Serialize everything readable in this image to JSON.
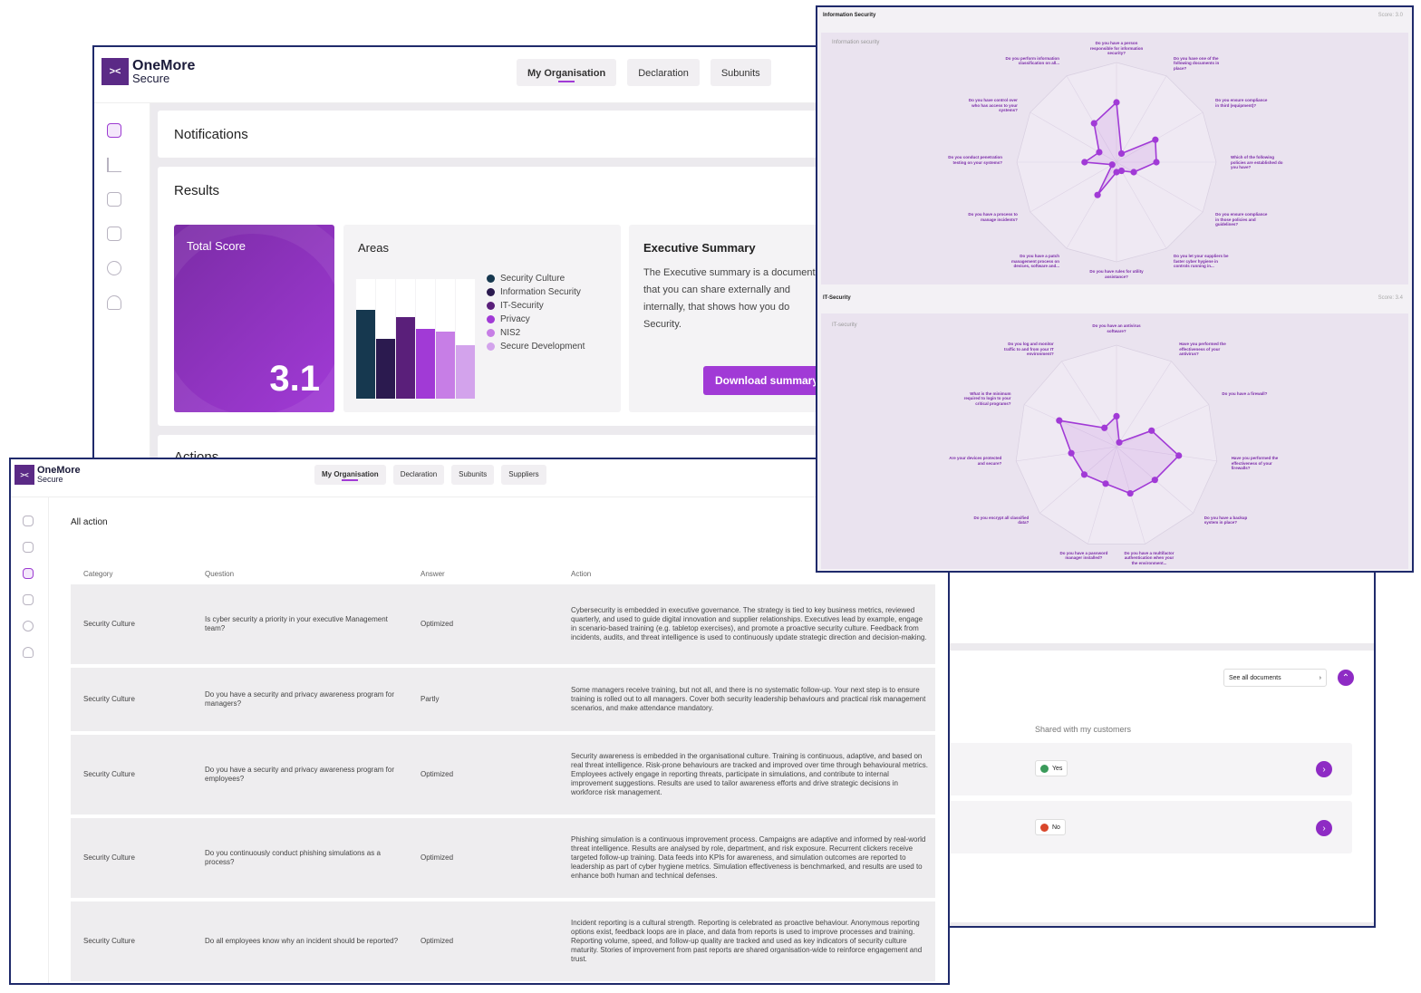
{
  "app": {
    "logo_line1": "OneMore",
    "logo_line2": "Secure",
    "logo_mark": "><"
  },
  "tabs_main": [
    "My Organisation",
    "Declaration",
    "Subunits"
  ],
  "tabs_actions": [
    "My Organisation",
    "Declaration",
    "Subunits",
    "Suppliers"
  ],
  "dashboard": {
    "notifications_title": "Notifications",
    "results_title": "Results",
    "total_score_label": "Total Score",
    "total_score_value": "3.1",
    "areas_title": "Areas",
    "areas_legend": [
      {
        "name": "Security Culture",
        "color": "#16384f"
      },
      {
        "name": "Information Security",
        "color": "#2b1a4f"
      },
      {
        "name": "IT-Security",
        "color": "#5a1f7a"
      },
      {
        "name": "Privacy",
        "color": "#a13ad6"
      },
      {
        "name": "NIS2",
        "color": "#c77ee6"
      },
      {
        "name": "Secure Development",
        "color": "#d3a3ec"
      }
    ],
    "areas_bar_fractions": [
      0.74,
      0.5,
      0.68,
      0.58,
      0.56,
      0.45
    ],
    "exec_title": "Executive Summary",
    "exec_text": "The Executive summary is a document that you can share externally and internally, that shows how you do Security.",
    "download_label": "Download summary",
    "actions_title": "Actions"
  },
  "documents": {
    "see_all_label": "See all documents",
    "shared_header": "Shared with my customers",
    "rows": [
      {
        "status": "Yes",
        "status_color": "#3a9a5a"
      },
      {
        "status": "No",
        "status_color": "#d9472b"
      }
    ]
  },
  "actions_view": {
    "title": "All action",
    "columns": [
      "Category",
      "Question",
      "Answer",
      "Action"
    ],
    "rows": [
      {
        "category": "Security Culture",
        "question": "Is cyber security a priority in your executive Management team?",
        "answer": "Optimized",
        "action": "Cybersecurity is embedded in executive governance. The strategy is tied to key business metrics, reviewed quarterly, and used to guide digital innovation and supplier relationships. Executives lead by example, engage in scenario-based training (e.g. tabletop exercises), and promote a proactive security culture. Feedback from incidents, audits, and threat intelligence is used to continuously update strategic direction and decision-making."
      },
      {
        "category": "Security Culture",
        "question": "Do you have a security and privacy awareness program for managers?",
        "answer": "Partly",
        "action": "Some managers receive training, but not all, and there is no systematic follow-up. Your next step is to ensure training is rolled out to all managers. Cover both security leadership behaviours and practical risk management scenarios, and make attendance mandatory."
      },
      {
        "category": "Security Culture",
        "question": "Do you have a security and privacy awareness program for employees?",
        "answer": "Optimized",
        "action": "Security awareness is embedded in the organisational culture. Training is continuous, adaptive, and based on real threat intelligence. Risk-prone behaviours are tracked and improved over time through behavioural metrics. Employees actively engage in reporting threats, participate in simulations, and contribute to internal improvement suggestions. Results are used to tailor awareness efforts and drive strategic decisions in workforce risk management."
      },
      {
        "category": "Security Culture",
        "question": "Do you continuously conduct phishing simulations as a process?",
        "answer": "Optimized",
        "action": "Phishing simulation is a continuous improvement process. Campaigns are adaptive and informed by real-world threat intelligence. Results are analysed by role, department, and risk exposure. Recurrent clickers receive targeted follow-up training. Data feeds into KPIs for awareness, and simulation outcomes are reported to leadership as part of cyber hygiene metrics. Simulation effectiveness is benchmarked, and results are used to enhance both human and technical defenses."
      },
      {
        "category": "Security Culture",
        "question": "Do all employees know why an incident should be reported?",
        "answer": "Optimized",
        "action": "Incident reporting is a cultural strength. Reporting is celebrated as proactive behaviour. Anonymous reporting options exist, feedback loops are in place, and data from reports is used to improve processes and training. Reporting volume, speed, and follow-up quality are tracked and used as key indicators of security culture maturity. Stories of improvement from past reports are shared organisation-wide to reinforce engagement and trust."
      }
    ]
  },
  "radar": {
    "info_panel_title": "Information Security",
    "info_panel_score": "Score: 3.0",
    "info_sub": "Information security",
    "info_labels": [
      "Do you have a person responsible for information security?",
      "Do you have one of the following documents in place?",
      "Do you ensure compliance in third (equipment)?",
      "Which of the following policies are established do you have?",
      "Do you ensure compliance in those policies and guidelines?",
      "Do you let your suppliers be faster cyber hygiene in controls running in...",
      "Do you have rules for utility assistance?",
      "Do you have a patch management process on devices, software and...",
      "Do you have a process to manage incidents?",
      "Do you conduct penetration testing on your systems?",
      "Do you have control over who has access to your systems?",
      "Do you perform information classification on all..."
    ],
    "info_values": [
      0.6,
      0.1,
      0.45,
      0.4,
      0.2,
      0.1,
      0.1,
      0.38,
      0.05,
      0.32,
      0.2,
      0.45
    ],
    "it_panel_title": "IT-Security",
    "it_panel_score": "Score: 3.4",
    "it_sub": "IT-security",
    "it_labels": [
      "Do you have an antivirus software?",
      "Have you performed the effectiveness of your antivirus?",
      "Do you have a firewall?",
      "Have you performed the effectiveness of your firewalls?",
      "Do you have a backup system in place?",
      "Do you have a multifactor authentication when your the environment...",
      "Do you have a password manager installed?",
      "Do you encrypt all classified data?",
      "Are your devices protected and secure?",
      "What is the minimum required to login to your critical programs?",
      "Do you log and monitor traffic to and from your IT environment?"
    ],
    "it_values": [
      0.3,
      0.05,
      0.38,
      0.62,
      0.5,
      0.48,
      0.38,
      0.42,
      0.45,
      0.62,
      0.22
    ],
    "scale_ticks": [
      "0.0",
      "1.0",
      "2.0",
      "3.0",
      "4.0",
      "5.0"
    ]
  }
}
